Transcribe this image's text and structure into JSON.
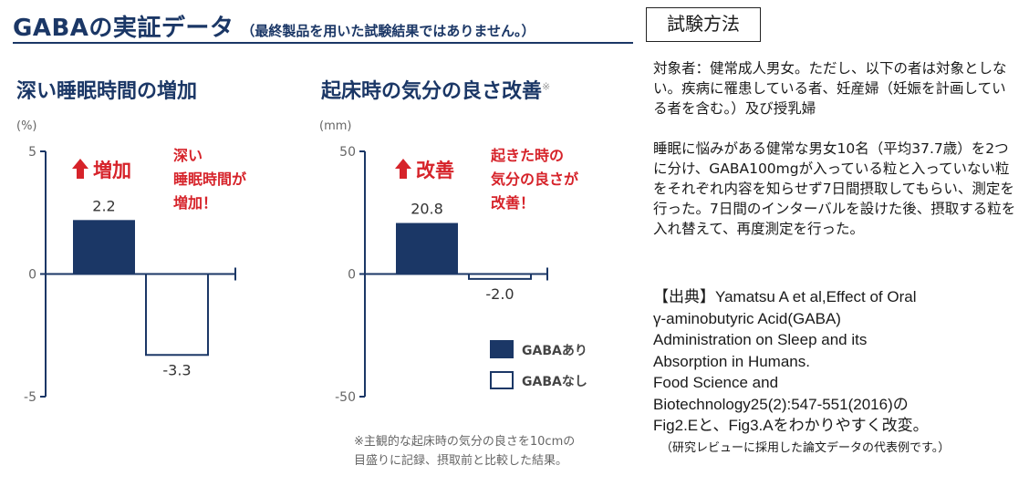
{
  "header": {
    "title": "GABAの実証データ",
    "subtitle": "（最終製品を用いた試験結果ではありません。）"
  },
  "colors": {
    "navy": "#1b3766",
    "red": "#d6232a",
    "text": "#1a1a1a",
    "gray": "#666666"
  },
  "chart_data": [
    {
      "type": "bar",
      "title": "深い睡眠時間の増加",
      "unit": "(%)",
      "ylim": [
        -5,
        5
      ],
      "ticks": [
        {
          "value": 5,
          "label": "5"
        },
        {
          "value": 0,
          "label": "0"
        },
        {
          "value": -5,
          "label": "-5"
        }
      ],
      "series": [
        {
          "name": "GABAあり",
          "values": [
            2.2
          ],
          "labels": [
            "2.2"
          ]
        },
        {
          "name": "GABAなし",
          "values": [
            -3.3
          ],
          "labels": [
            "-3.3"
          ]
        }
      ],
      "badge": "増加",
      "annotation": [
        "深い",
        "睡眠時間が",
        "増加！"
      ]
    },
    {
      "type": "bar",
      "title": "起床時の気分の良さ改善",
      "title_mark": "※",
      "unit": "(mm)",
      "ylim": [
        -50,
        50
      ],
      "ticks": [
        {
          "value": 50,
          "label": "50"
        },
        {
          "value": 0,
          "label": "0"
        },
        {
          "value": -50,
          "label": "-50"
        }
      ],
      "series": [
        {
          "name": "GABAあり",
          "values": [
            20.8
          ],
          "labels": [
            "20.8"
          ]
        },
        {
          "name": "GABAなし",
          "values": [
            -2.0
          ],
          "labels": [
            "-2.0"
          ]
        }
      ],
      "badge": "改善",
      "annotation": [
        "起きた時の",
        "気分の良さが",
        "改善！"
      ],
      "legend": {
        "placement": "bottom-right",
        "items": [
          "GABAあり",
          "GABAなし"
        ]
      }
    }
  ],
  "footnote": [
    "※主観的な起床時の気分の良さを10cmの",
    "目盛りに記録、摂取前と比較した結果。"
  ],
  "method": {
    "title": "試験方法",
    "subjects": "対象者：健常成人男女。ただし、以下の者は対象としない。疾病に罹患している者、妊産婦（妊娠を計画している者を含む。）及び授乳婦",
    "procedure": "睡眠に悩みがある健常な男女10名（平均37.7歳）を2つに分け、GABA100mgが入っている粒と入っていない粒をそれぞれ内容を知らせず7日間摂取してもらい、測定を行った。7日間のインターバルを設けた後、摂取する粒を入れ替えて、再度測定を行った。",
    "source_lines": [
      "【出典】Yamatsu A et al,Effect of Oral",
      "γ-aminobutyric Acid(GABA)",
      "Administration on Sleep and its",
      "Absorption in Humans.",
      "Food Science and",
      "Biotechnology25(2):547-551(2016)の",
      "Fig2.Eと、Fig3.Aをわかりやすく改変。"
    ],
    "note": "（研究レビューに採用した論文データの代表例です。）"
  }
}
